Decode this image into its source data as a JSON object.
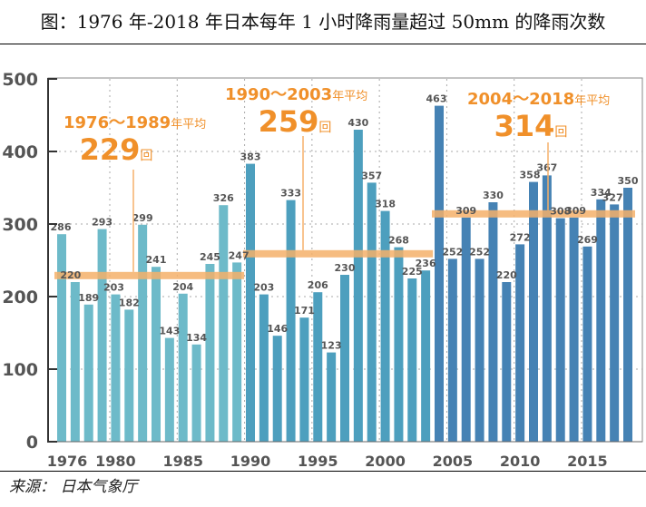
{
  "title": "图：1976 年-2018 年日本每年 1 小时降雨量超过 50mm 的降雨次数",
  "source": "来源：  日本气象厅",
  "chart_data": {
    "type": "bar",
    "title": "图：1976 年-2018 年日本每年 1 小时降雨量超过 50mm 的降雨次数",
    "xlabel": "",
    "ylabel": "",
    "ylim": [
      0,
      500
    ],
    "yticks": [
      0,
      100,
      200,
      300,
      400,
      500
    ],
    "xtick_labels": [
      "1976",
      "1980",
      "1985",
      "1990",
      "1995",
      "2000",
      "2005",
      "2010",
      "2015"
    ],
    "grid": true,
    "categories": [
      1976,
      1977,
      1978,
      1979,
      1980,
      1981,
      1982,
      1983,
      1984,
      1985,
      1986,
      1987,
      1988,
      1989,
      1990,
      1991,
      1992,
      1993,
      1994,
      1995,
      1996,
      1997,
      1998,
      1999,
      2000,
      2001,
      2002,
      2003,
      2004,
      2005,
      2006,
      2007,
      2008,
      2009,
      2010,
      2011,
      2012,
      2013,
      2014,
      2015,
      2016,
      2017,
      2018
    ],
    "values": [
      286,
      220,
      189,
      293,
      203,
      182,
      299,
      241,
      143,
      204,
      134,
      245,
      326,
      247,
      383,
      203,
      146,
      333,
      171,
      206,
      123,
      230,
      430,
      357,
      318,
      268,
      225,
      236,
      463,
      252,
      309,
      252,
      330,
      220,
      272,
      358,
      367,
      308,
      309,
      269,
      334,
      327,
      350
    ],
    "periods": [
      {
        "range_label": "1976～1989",
        "suffix": "年平均",
        "average": 229,
        "unit": "回",
        "start": 1976,
        "end": 1989,
        "color": "#6dbac9"
      },
      {
        "range_label": "1990～2003",
        "suffix": "年平均",
        "average": 259,
        "unit": "回",
        "start": 1990,
        "end": 2003,
        "color": "#4d9fbe"
      },
      {
        "range_label": "2004～2018",
        "suffix": "年平均",
        "average": 314,
        "unit": "回",
        "start": 2004,
        "end": 2018,
        "color": "#4582b4"
      }
    ],
    "average_line_color": "#f5b06a",
    "annotation_color": "#f0902a"
  }
}
